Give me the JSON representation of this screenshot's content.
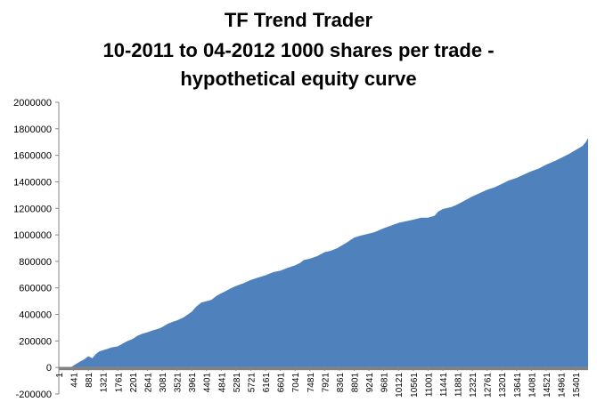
{
  "chart_data": {
    "type": "area",
    "title_lines": [
      "TF Trend Trader",
      "10-2011 to 04-2012 1000 shares per trade -",
      "hypothetical equity curve"
    ],
    "xlabel": "",
    "ylabel": "",
    "ylim": [
      -200000,
      2000000
    ],
    "y_ticks": [
      -200000,
      0,
      200000,
      400000,
      600000,
      800000,
      1000000,
      1200000,
      1400000,
      1600000,
      1800000,
      2000000
    ],
    "y_tick_labels": [
      "-200000",
      "0",
      "200000",
      "400000",
      "600000",
      "800000",
      "1000000",
      "1200000",
      "1400000",
      "1600000",
      "1800000",
      "2000000"
    ],
    "x_range": [
      1,
      15770
    ],
    "x_ticks": [
      1,
      441,
      881,
      1321,
      1761,
      2201,
      2641,
      3081,
      3521,
      3961,
      4401,
      4841,
      5281,
      5721,
      6161,
      6601,
      7041,
      7481,
      7921,
      8361,
      8801,
      9241,
      9681,
      10121,
      10561,
      11001,
      11441,
      11881,
      12321,
      12761,
      13201,
      13641,
      14081,
      14521,
      14961,
      15401
    ],
    "grid": false,
    "legend": "none",
    "colors": {
      "equity_fill": "#4f81bd",
      "drawdown_fill": "#808080",
      "axis": "#868686",
      "text": "#000000"
    },
    "series": [
      {
        "type": "area",
        "x": [
          1,
          150,
          300,
          441,
          600,
          750,
          881,
          1000,
          1100,
          1200,
          1321,
          1450,
          1550,
          1761,
          1900,
          2050,
          2201,
          2350,
          2500,
          2641,
          2800,
          3000,
          3081,
          3250,
          3400,
          3521,
          3700,
          3850,
          3961,
          4100,
          4250,
          4401,
          4550,
          4700,
          4841,
          5000,
          5150,
          5281,
          5500,
          5721,
          5900,
          6161,
          6400,
          6601,
          6800,
          7041,
          7200,
          7300,
          7481,
          7700,
          7921,
          8100,
          8300,
          8361,
          8600,
          8801,
          9000,
          9241,
          9400,
          9681,
          9900,
          10121,
          10300,
          10561,
          10800,
          11001,
          11200,
          11300,
          11441,
          11700,
          11881,
          12100,
          12321,
          12500,
          12761,
          13000,
          13201,
          13400,
          13641,
          13900,
          14081,
          14300,
          14521,
          14800,
          14961,
          15200,
          15401,
          15600,
          15700,
          15770
        ],
        "values": [
          0,
          -10000,
          -8000,
          15000,
          40000,
          60000,
          85000,
          70000,
          100000,
          120000,
          130000,
          140000,
          150000,
          160000,
          180000,
          200000,
          215000,
          240000,
          255000,
          265000,
          280000,
          295000,
          305000,
          330000,
          345000,
          355000,
          375000,
          400000,
          420000,
          460000,
          490000,
          500000,
          510000,
          540000,
          560000,
          580000,
          600000,
          615000,
          635000,
          660000,
          675000,
          695000,
          720000,
          730000,
          750000,
          770000,
          790000,
          810000,
          820000,
          840000,
          870000,
          880000,
          900000,
          910000,
          945000,
          980000,
          995000,
          1010000,
          1020000,
          1050000,
          1070000,
          1090000,
          1100000,
          1115000,
          1130000,
          1130000,
          1145000,
          1175000,
          1195000,
          1210000,
          1230000,
          1260000,
          1290000,
          1310000,
          1340000,
          1360000,
          1385000,
          1410000,
          1430000,
          1460000,
          1480000,
          1500000,
          1530000,
          1560000,
          1580000,
          1610000,
          1640000,
          1670000,
          1700000,
          1730000
        ]
      },
      {
        "type": "area",
        "x": [
          1,
          15770
        ],
        "values": [
          -20000,
          -20000
        ]
      }
    ]
  }
}
